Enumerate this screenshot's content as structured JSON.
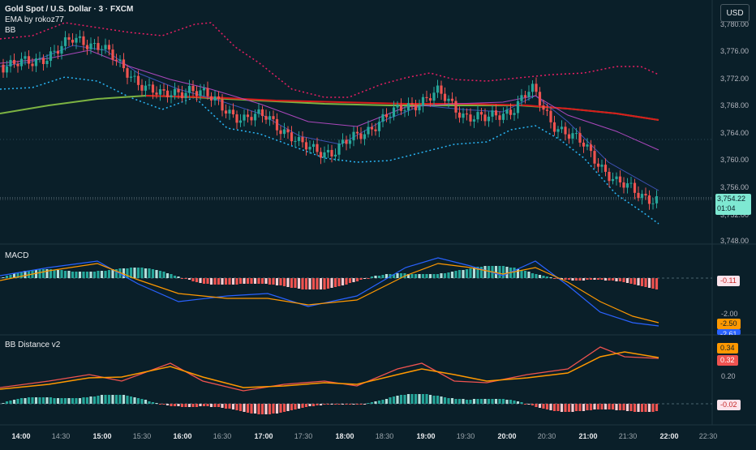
{
  "header": {
    "symbol_line": "Gold Spot / U.S. Dollar · 3 · FXCM",
    "ema_line": "EMA by rokoz77",
    "bb_line": "BB",
    "currency": "USD"
  },
  "price_pane": {
    "axis_ticks": [
      "3,780.00",
      "3,776.00",
      "3,772.00",
      "3,768.00",
      "3,764.00",
      "3,760.00",
      "3,756.00",
      "3,752.00",
      "3,748.00"
    ],
    "last_price": "3,754.22",
    "countdown": "01:04"
  },
  "macd_pane": {
    "title": "MACD",
    "axis_tick": "-2.00",
    "hist_tag": "-0.11",
    "signal_tag": "-2.50",
    "macd_tag": "-2.61"
  },
  "bbd_pane": {
    "title": "BB Distance v2",
    "axis_tick": "0.20",
    "orange_tag": "0.34",
    "red_tag": "0.32",
    "hist_tag": "-0.02"
  },
  "time_axis": {
    "labels": [
      {
        "text": "14:00",
        "bold": true
      },
      {
        "text": "14:30",
        "bold": false
      },
      {
        "text": "15:00",
        "bold": true
      },
      {
        "text": "15:30",
        "bold": false
      },
      {
        "text": "16:00",
        "bold": true
      },
      {
        "text": "16:30",
        "bold": false
      },
      {
        "text": "17:00",
        "bold": true
      },
      {
        "text": "17:30",
        "bold": false
      },
      {
        "text": "18:00",
        "bold": true
      },
      {
        "text": "18:30",
        "bold": false
      },
      {
        "text": "19:00",
        "bold": true
      },
      {
        "text": "19:30",
        "bold": false
      },
      {
        "text": "20:00",
        "bold": true
      },
      {
        "text": "20:30",
        "bold": false
      },
      {
        "text": "21:00",
        "bold": true
      },
      {
        "text": "21:30",
        "bold": false
      },
      {
        "text": "22:00",
        "bold": true
      },
      {
        "text": "22:30",
        "bold": false
      }
    ]
  },
  "colors": {
    "background": "#0a1f29",
    "bull": "#26a69a",
    "bear": "#ef5350",
    "ema_long": "#d81b1b",
    "ema_green": "#7cb342",
    "bb_upper": "#e91e63",
    "bb_lower": "#29b6f6",
    "macd_line": "#2962ff",
    "signal_line": "#ff9800"
  }
}
